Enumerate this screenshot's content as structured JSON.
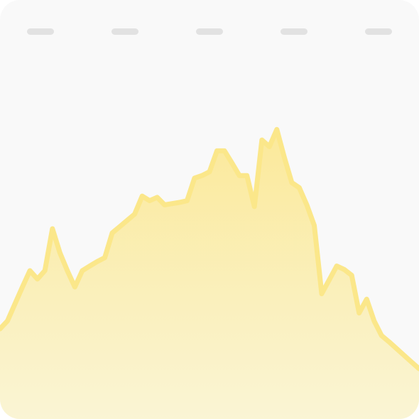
{
  "chart_data": {
    "type": "area",
    "title": "",
    "xlabel": "",
    "ylabel": "",
    "grid": false,
    "legend": "none",
    "xlim": [
      0,
      56
    ],
    "ylim": [
      0,
      100
    ],
    "x": [
      0,
      1,
      2,
      3,
      4,
      5,
      6,
      7,
      8,
      9,
      10,
      11,
      12,
      13,
      14,
      15,
      16,
      17,
      18,
      19,
      20,
      21,
      22,
      23,
      24,
      25,
      26,
      27,
      28,
      29,
      30,
      31,
      32,
      33,
      34,
      35,
      36,
      37,
      38,
      39,
      40,
      41,
      42,
      43,
      44,
      45,
      46,
      47,
      48,
      49,
      50,
      51,
      52,
      53,
      54,
      55,
      56
    ],
    "series": [
      {
        "values": [
          21.5,
          23.4,
          27.5,
          31.5,
          35.4,
          33.4,
          35.4,
          45.4,
          39.7,
          35.4,
          31.5,
          35.4,
          36.5,
          37.6,
          38.5,
          44.4,
          45.9,
          47.4,
          48.9,
          53.2,
          52.1,
          52.9,
          51.1,
          51.4,
          51.7,
          52.1,
          57.5,
          58.1,
          59.0,
          64.0,
          64.0,
          61.1,
          58.1,
          58.1,
          50.7,
          66.6,
          65.0,
          69.1,
          62.4,
          56.4,
          55.2,
          51.1,
          46.2,
          29.9,
          33.2,
          36.5,
          35.7,
          34.3,
          25.3,
          28.6,
          23.4,
          19.9,
          18.4,
          16.8,
          15.2,
          13.6,
          12.0
        ],
        "color": "#fbe78a"
      }
    ],
    "colors": {
      "line": "#fbe78a",
      "fill_top": "#fbe99a",
      "fill_bottom": "#faf5d6",
      "background": "#f9f9f9",
      "placeholder": "#e2e2e2"
    }
  }
}
